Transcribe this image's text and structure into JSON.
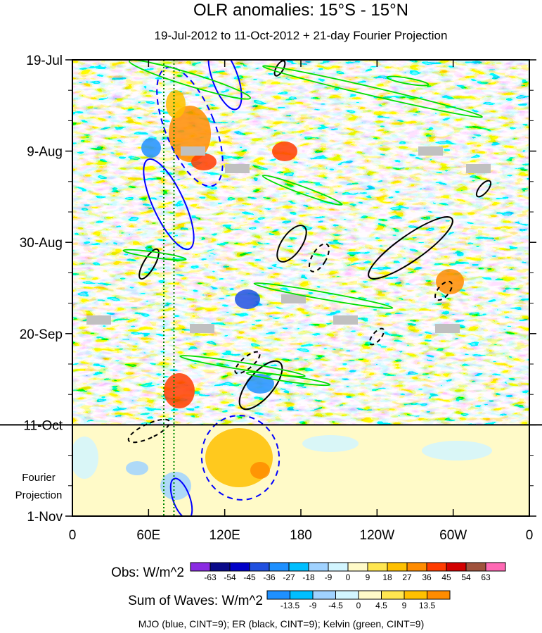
{
  "chart_data": {
    "type": "heatmap",
    "title": "OLR anomalies: 15°S - 15°N",
    "subtitle": "19-Jul-2012 to 11-Oct-2012 + 21-day Fourier Projection",
    "x_tick_labels": [
      "0",
      "60E",
      "120E",
      "180",
      "120W",
      "60W",
      "0"
    ],
    "x_tick_lon_east": [
      0,
      60,
      120,
      180,
      240,
      300,
      360
    ],
    "xlim_lon_east": [
      0,
      360
    ],
    "y_tick_labels": [
      "19-Jul",
      "9-Aug",
      "30-Aug",
      "20-Sep",
      "11-Oct",
      "1-Nov"
    ],
    "y_tick_day": [
      0,
      21,
      42,
      63,
      84,
      105
    ],
    "ylim_day": [
      0,
      105
    ],
    "forecast_start_day": 84,
    "forecast_label_line1": "Fourier",
    "forecast_label_line2": "Projection",
    "obs_colorbar": {
      "label": "Obs: W/m^2",
      "levels": [
        -63,
        -54,
        -45,
        -36,
        -27,
        -18,
        -9,
        0,
        9,
        18,
        27,
        36,
        45,
        54,
        63
      ],
      "colors": [
        "#8a2be2",
        "#0a0a8a",
        "#0000c8",
        "#2050e0",
        "#1e90ff",
        "#00bfff",
        "#a0d2ff",
        "#d2f5ff",
        "#fffac8",
        "#ffe650",
        "#ffc000",
        "#ff8c00",
        "#ff3c00",
        "#d20000",
        "#a0523c",
        "#ff69b4"
      ]
    },
    "waves_colorbar": {
      "label": "Sum of Waves: W/m^2",
      "levels": [
        -13.5,
        -9,
        -4.5,
        0,
        4.5,
        9,
        13.5
      ],
      "colors": [
        "#1e90ff",
        "#00bfff",
        "#a0d2ff",
        "#d2f5ff",
        "#fffac8",
        "#ffe650",
        "#ffc000",
        "#ff8c00"
      ]
    },
    "reference_lines_lon_east": [
      72,
      80
    ],
    "wave_contours": [
      {
        "name": "MJO",
        "color": "#0000ff"
      },
      {
        "name": "ER",
        "color": "#000000"
      },
      {
        "name": "Kelvin",
        "color": "#00dd00"
      }
    ],
    "footer": "MJO (blue, CINT=9); ER (black, CINT=9); Kelvin (green, CINT=9)"
  }
}
